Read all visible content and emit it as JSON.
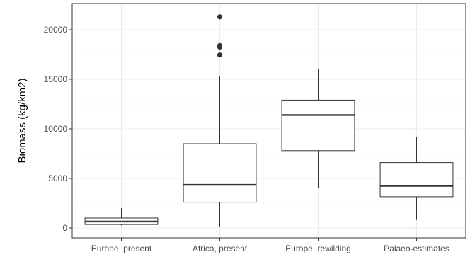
{
  "chart_data": {
    "type": "box",
    "ylabel": "Biomass (kg/km2)",
    "xlabel": "",
    "ylim": [
      -1000,
      22500
    ],
    "yticks": [
      0,
      5000,
      10000,
      15000,
      20000
    ],
    "ytick_labels": [
      "0",
      "5000",
      "10000",
      "15000",
      "20000"
    ],
    "categories": [
      "Europe, present",
      "Africa, present",
      "Europe, rewilding",
      "Palaeo-estimates"
    ],
    "boxes": [
      {
        "category": "Europe, present",
        "whisker_low": 250,
        "q1": 350,
        "median": 650,
        "q3": 1000,
        "whisker_high": 2000,
        "outliers": []
      },
      {
        "category": "Africa, present",
        "whisker_low": 150,
        "q1": 2600,
        "median": 4350,
        "q3": 8500,
        "whisker_high": 15300,
        "outliers": [
          17450,
          18250,
          18400,
          21300
        ]
      },
      {
        "category": "Europe, rewilding",
        "whisker_low": 4050,
        "q1": 7800,
        "median": 11400,
        "q3": 12900,
        "whisker_high": 16000,
        "outliers": []
      },
      {
        "category": "Palaeo-estimates",
        "whisker_low": 800,
        "q1": 3150,
        "median": 4250,
        "q3": 6600,
        "whisker_high": 9200,
        "outliers": []
      }
    ],
    "grid": true,
    "legend": "none",
    "colors": {
      "box_stroke": "#333333",
      "grid_major": "#ebebeb",
      "grid_minor": "#f5f5f5",
      "panel_border": "#333333",
      "outlier": "#333333"
    }
  }
}
